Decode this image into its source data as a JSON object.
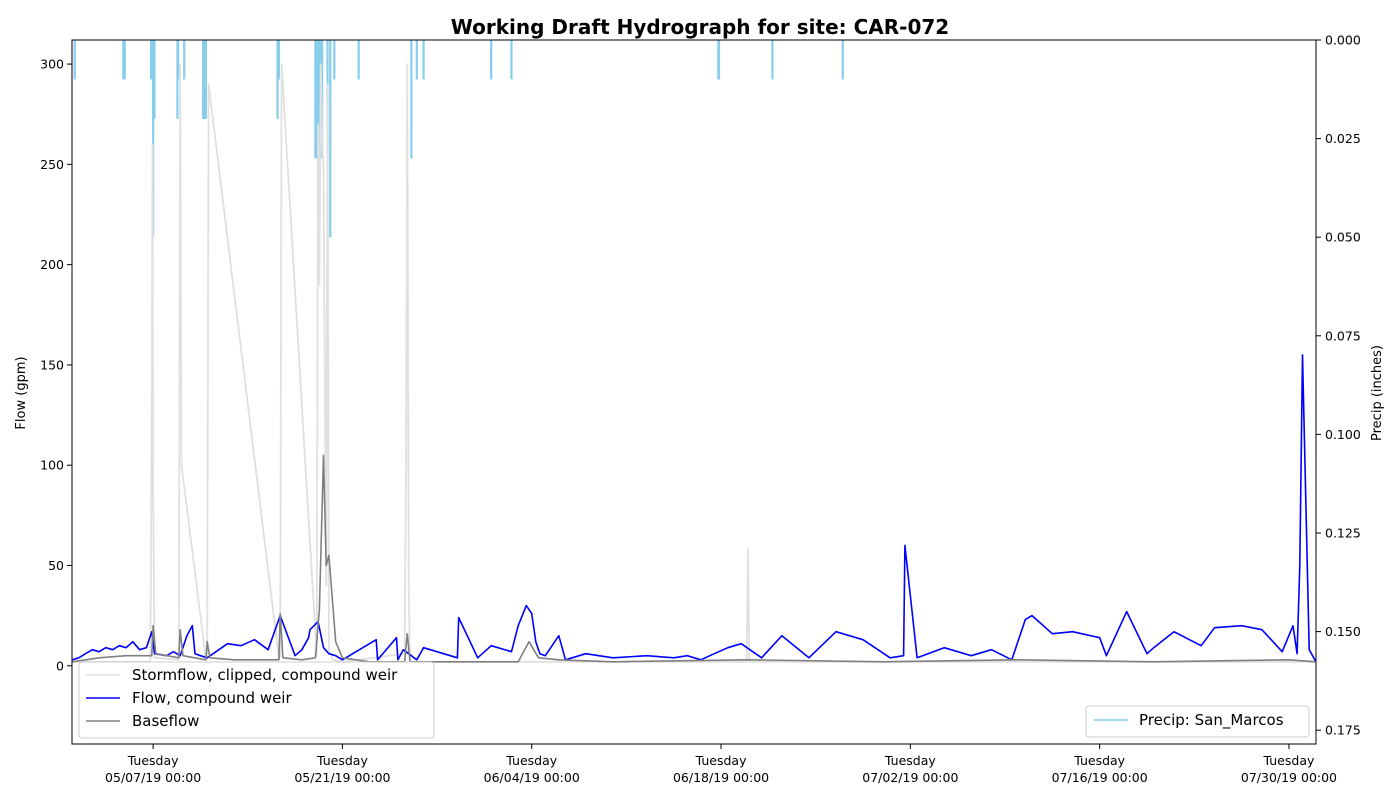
{
  "chart_data": {
    "type": "line",
    "title": "Working Draft Hydrograph for site: CAR-072",
    "ylabel": "Flow (gpm)",
    "y2label": "Precip (inches)",
    "ylim": [
      -39,
      312
    ],
    "y2lim": [
      0.0,
      0.1785
    ],
    "y2_inverted": true,
    "x_start": "05/01/19 00:00",
    "x_end": "08/01/19 00:00",
    "yticks": [
      0,
      50,
      100,
      150,
      200,
      250,
      300
    ],
    "y2ticks": [
      "0.000",
      "0.025",
      "0.050",
      "0.075",
      "0.100",
      "0.125",
      "0.150",
      "0.175"
    ],
    "xticks": [
      {
        "day": "Tuesday",
        "date": "05/07/19 00:00"
      },
      {
        "day": "Tuesday",
        "date": "05/21/19 00:00"
      },
      {
        "day": "Tuesday",
        "date": "06/04/19 00:00"
      },
      {
        "day": "Tuesday",
        "date": "06/18/19 00:00"
      },
      {
        "day": "Tuesday",
        "date": "07/02/19 00:00"
      },
      {
        "day": "Tuesday",
        "date": "07/16/19 00:00"
      },
      {
        "day": "Tuesday",
        "date": "07/30/19 00:00"
      }
    ],
    "legend_left": {
      "placement": "lower-left",
      "entries": [
        {
          "label": "Stormflow, clipped, compound weir",
          "color": "#e0e0e0"
        },
        {
          "label": "Flow, compound weir",
          "color": "#0000ff"
        },
        {
          "label": "Baseflow",
          "color": "#808080"
        }
      ]
    },
    "legend_right": {
      "placement": "lower-right",
      "entries": [
        {
          "label": "Precip: San_Marcos",
          "color": "#87ceeb"
        }
      ]
    },
    "series": [
      {
        "name": "Stormflow, clipped, compound weir",
        "color": "#e0e0e0",
        "x_days": [
          0.2,
          5.8,
          5.9,
          5.95,
          6.0,
          6.1,
          7.9,
          8.0,
          8.1,
          9.9,
          10.0,
          10.1,
          15.3,
          15.4,
          15.5,
          18.1,
          18.2,
          18.3,
          18.4,
          18.5,
          18.6,
          18.8,
          18.9,
          19.0,
          19.3,
          20.0,
          24.6,
          24.7,
          24.8,
          24.9,
          25.0,
          35.0,
          49.9,
          50.0,
          50.1,
          92.0
        ],
        "values": [
          2,
          2,
          130,
          260,
          90,
          4,
          3,
          300,
          100,
          3,
          4,
          290,
          4,
          5,
          300,
          5,
          270,
          190,
          300,
          260,
          250,
          40,
          290,
          8,
          3,
          2,
          6,
          100,
          300,
          40,
          2,
          2,
          2,
          58,
          2,
          2
        ]
      },
      {
        "name": "Flow, compound weir",
        "color": "#0000ff",
        "x_days": [
          0.0,
          0.5,
          1.0,
          1.5,
          2.0,
          2.5,
          3.0,
          3.5,
          4.0,
          4.5,
          5.0,
          5.5,
          5.9,
          6.1,
          7.0,
          7.5,
          8.0,
          8.5,
          8.9,
          9.1,
          9.5,
          10.0,
          11.5,
          12.5,
          13.5,
          14.5,
          15.4,
          16.5,
          17.0,
          17.5,
          17.6,
          18.2,
          18.6,
          19.0,
          19.5,
          20.0,
          22.5,
          22.6,
          24.0,
          24.1,
          24.5,
          25.5,
          26.0,
          28.5,
          28.6,
          30.0,
          31.0,
          32.5,
          33.0,
          33.6,
          33.8,
          34.0,
          34.3,
          34.6,
          35.0,
          36.0,
          36.5,
          38.0,
          40.0,
          42.5,
          44.5,
          45.5,
          46.5,
          47.5,
          48.5,
          49.5,
          51.0,
          52.5,
          54.5,
          56.5,
          58.5,
          60.5,
          61.5,
          61.6,
          62.5,
          64.5,
          66.5,
          68.0,
          69.5,
          70.5,
          71.0,
          72.5,
          74.0,
          76.0,
          76.5,
          78.0,
          79.5,
          80.0,
          81.5,
          83.5,
          84.5,
          86.5,
          88.0,
          89.5,
          90.3,
          90.6,
          90.8,
          91.0,
          91.5,
          92.0
        ],
        "values": [
          3,
          4,
          6,
          8,
          7,
          9,
          8,
          10,
          9,
          12,
          8,
          9,
          17,
          6,
          5,
          7,
          5,
          15,
          20,
          6,
          5,
          4,
          11,
          10,
          13,
          8,
          25,
          5,
          8,
          14,
          18,
          22,
          9,
          6,
          5,
          3,
          13,
          3,
          14,
          3,
          8,
          3,
          9,
          4,
          24,
          4,
          10,
          7,
          20,
          30,
          28,
          26,
          12,
          6,
          5,
          15,
          3,
          6,
          4,
          5,
          4,
          5,
          3,
          6,
          9,
          11,
          4,
          15,
          4,
          17,
          13,
          4,
          5,
          60,
          4,
          9,
          5,
          8,
          3,
          23,
          25,
          16,
          17,
          14,
          5,
          27,
          6,
          9,
          17,
          10,
          19,
          20,
          18,
          7,
          20,
          6,
          50,
          155,
          8,
          2
        ]
      },
      {
        "name": "Baseflow",
        "color": "#808080",
        "x_days": [
          0.0,
          2.0,
          4.0,
          5.9,
          6.0,
          6.2,
          7.9,
          8.0,
          8.2,
          9.9,
          10.0,
          10.2,
          12.0,
          15.3,
          15.4,
          15.6,
          17.0,
          18.0,
          18.3,
          18.6,
          18.8,
          19.0,
          19.5,
          20.0,
          22.0,
          24.6,
          24.8,
          25.0,
          26.0,
          28.0,
          33.0,
          33.8,
          34.5,
          36.0,
          40.0,
          50.0,
          60.0,
          70.0,
          80.0,
          90.0,
          92.0
        ],
        "values": [
          2,
          4,
          5,
          5,
          20,
          6,
          4,
          18,
          5,
          3,
          12,
          4,
          3,
          3,
          26,
          4,
          3,
          4,
          28,
          105,
          50,
          55,
          12,
          4,
          2,
          2,
          16,
          2,
          2,
          2,
          2,
          12,
          4,
          3,
          2,
          3,
          2,
          3,
          2,
          3,
          2
        ]
      }
    ],
    "precip": {
      "name": "Precip: San_Marcos",
      "color": "#87ceeb",
      "x_days": [
        0.2,
        3.8,
        3.9,
        5.85,
        6.0,
        6.1,
        7.8,
        7.85,
        8.3,
        9.7,
        9.8,
        9.9,
        15.2,
        15.3,
        18.0,
        18.1,
        18.2,
        18.3,
        18.4,
        18.5,
        18.9,
        19.1,
        19.4,
        21.2,
        25.1,
        25.5,
        26.0,
        31.0,
        32.5,
        47.8,
        47.85,
        51.8,
        57.0
      ],
      "values": [
        0.01,
        0.01,
        0.01,
        0.01,
        0.05,
        0.02,
        0.02,
        0.01,
        0.01,
        0.02,
        0.02,
        0.02,
        0.02,
        0.01,
        0.03,
        0.03,
        0.06,
        0.03,
        0.03,
        0.03,
        0.03,
        0.05,
        0.01,
        0.01,
        0.03,
        0.01,
        0.01,
        0.01,
        0.01,
        0.01,
        0.01,
        0.01,
        0.01
      ]
    }
  }
}
